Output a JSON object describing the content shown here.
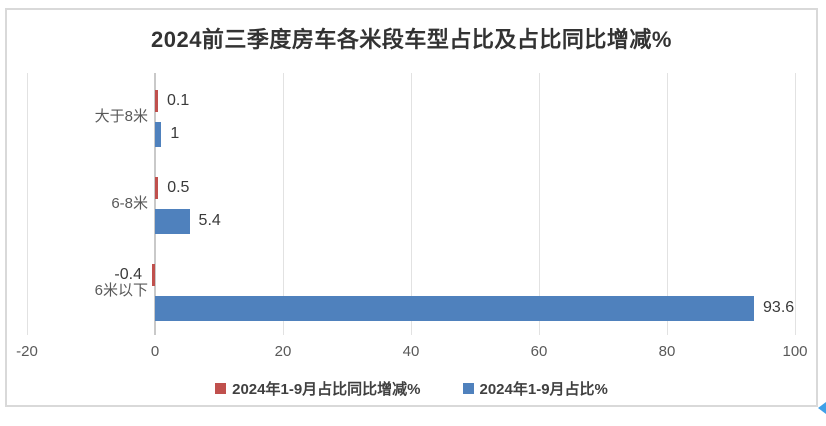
{
  "title": "2024前三季度房车各米段车型占比及占比同比增减%",
  "chart_data": {
    "type": "bar",
    "orientation": "horizontal",
    "title": "2024前三季度房车各米段车型占比及占比同比增减%",
    "categories": [
      "大于8米",
      "6-8米",
      "6米以下"
    ],
    "series": [
      {
        "name": "2024年1-9月占比同比增减%",
        "color": "#c0504d",
        "values": [
          0.1,
          0.5,
          -0.4
        ],
        "labels": [
          "0.1",
          "0.5",
          "-0.4"
        ]
      },
      {
        "name": "2024年1-9月占比%",
        "color": "#4f81bd",
        "values": [
          1,
          5.4,
          93.6
        ],
        "labels": [
          "1",
          "5.4",
          "93.6"
        ]
      }
    ],
    "xlim": [
      -20,
      100
    ],
    "x_ticks": [
      -20,
      0,
      20,
      40,
      60,
      80,
      100
    ],
    "x_tick_labels": [
      "-20",
      "0",
      "20",
      "40",
      "60",
      "80",
      "100"
    ],
    "grid": true,
    "legend_position": "bottom",
    "data_labels": true
  },
  "colors": {
    "frame_border": "#d9d9d9",
    "gridline": "#e2e2e2",
    "zero_axis": "#c9c9c9",
    "title_text": "#333333",
    "data_label_text": "#3a3a3a",
    "axis_text": "#595959",
    "artifact_blue": "#3fa0e8"
  }
}
